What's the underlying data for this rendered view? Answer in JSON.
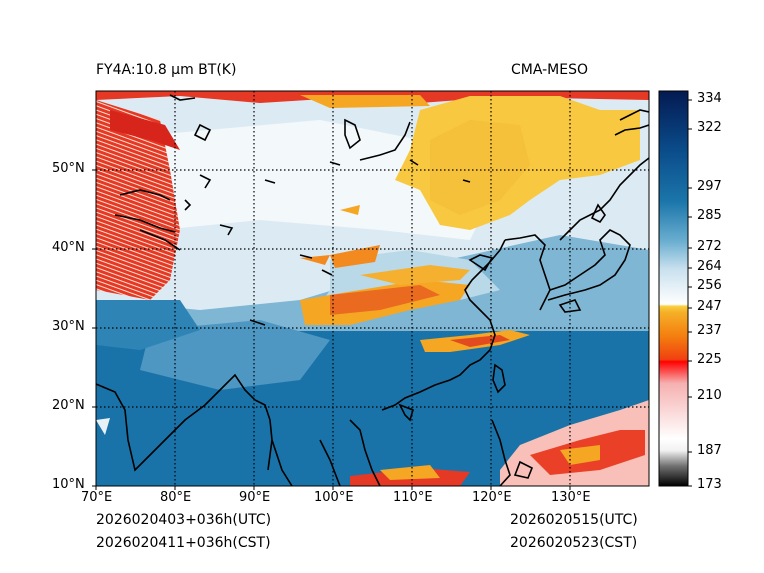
{
  "header": {
    "left_title": "FY4A:10.8 µm BT(K)",
    "right_title": "CMA-MESO"
  },
  "footer": {
    "init_utc": "2026020403+036h(UTC)",
    "init_cst": "2026020411+036h(CST)",
    "valid_utc": "2026020515(UTC)",
    "valid_cst": "2026020523(CST)"
  },
  "map": {
    "lon_range": [
      70,
      140
    ],
    "lat_range": [
      10,
      60
    ],
    "lon_ticks": [
      "70°E",
      "80°E",
      "90°E",
      "100°E",
      "110°E",
      "120°E",
      "130°E"
    ],
    "lat_ticks": [
      "10°N",
      "20°N",
      "30°N",
      "40°N",
      "50°N"
    ]
  },
  "colorbar": {
    "range": [
      173,
      337
    ],
    "ticks": [
      "334",
      "322",
      "297",
      "285",
      "272",
      "264",
      "256",
      "247",
      "237",
      "225",
      "210",
      "187",
      "173"
    ]
  },
  "colors": {
    "ocean": "#1a73a8",
    "cold_cloud_red": "#e03020",
    "cloud_orange": "#f5a623",
    "cloud_yellow": "#f8c940"
  }
}
